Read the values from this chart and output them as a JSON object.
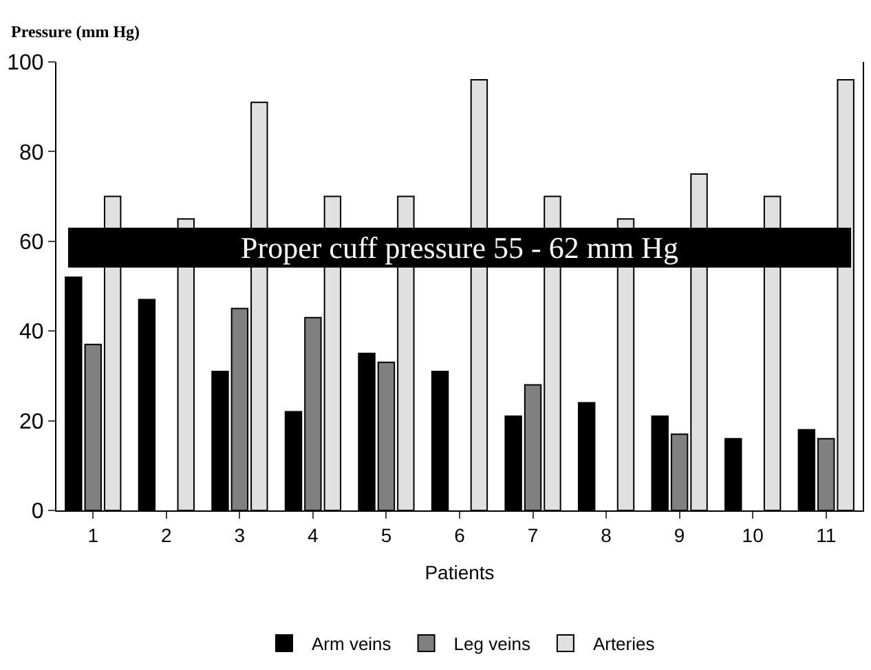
{
  "chart_data": {
    "type": "bar",
    "ylabel": "Pressure (mm Hg)",
    "xlabel": "Patients",
    "categories": [
      "1",
      "2",
      "3",
      "4",
      "5",
      "6",
      "7",
      "8",
      "9",
      "10",
      "11"
    ],
    "series": [
      {
        "name": "Arm veins",
        "color": "#000000",
        "values": [
          52,
          47,
          31,
          22,
          35,
          31,
          21,
          24,
          21,
          16,
          18
        ]
      },
      {
        "name": "Leg veins",
        "color": "#808080",
        "values": [
          37,
          null,
          45,
          43,
          33,
          null,
          28,
          null,
          17,
          null,
          16
        ]
      },
      {
        "name": "Arteries",
        "color": "#e0e0e0",
        "values": [
          70,
          65,
          91,
          70,
          70,
          96,
          70,
          65,
          75,
          70,
          96
        ]
      }
    ],
    "ylim": [
      0,
      100
    ],
    "yticks": [
      0,
      20,
      40,
      60,
      80,
      100
    ],
    "legend": "bottom",
    "annotations": [
      "Proper cuff pressure 55 - 62 mm Hg"
    ]
  }
}
